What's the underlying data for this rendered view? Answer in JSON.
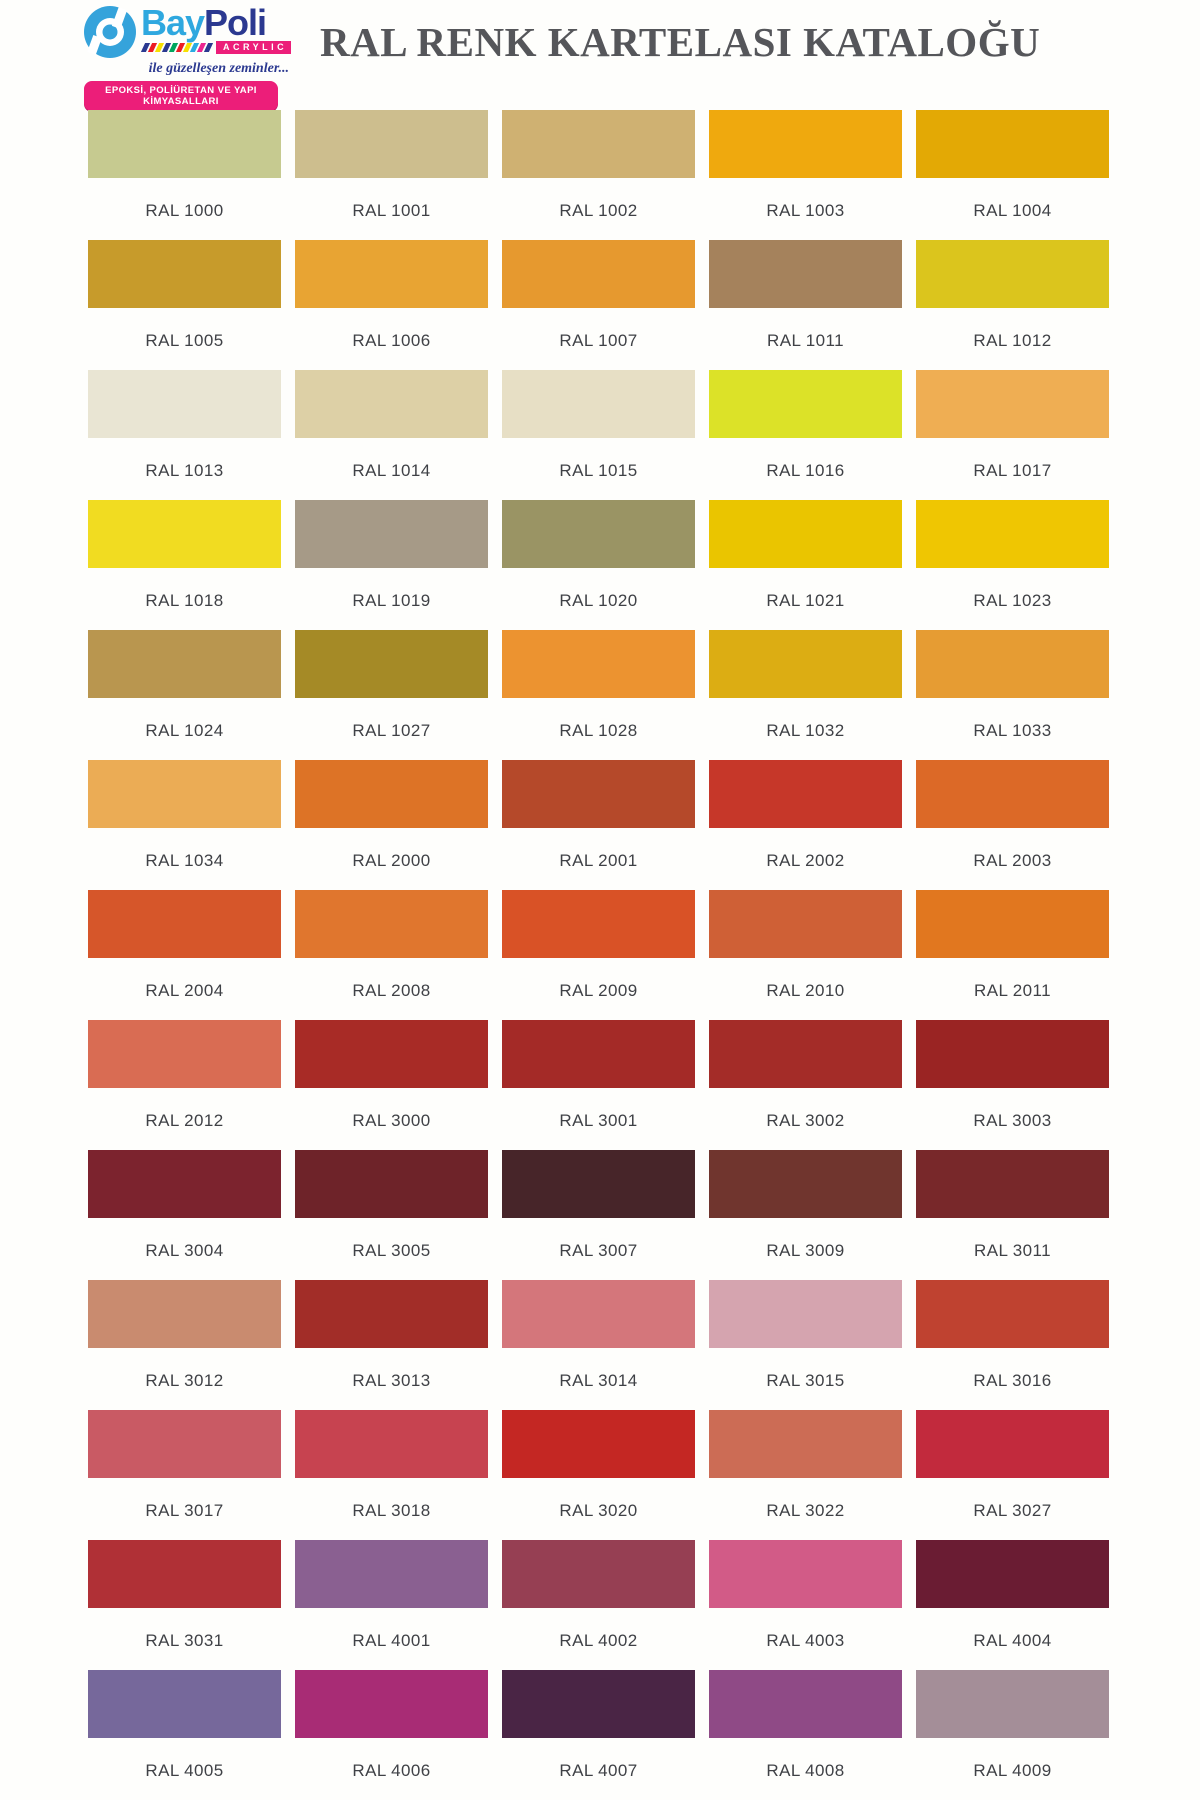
{
  "header": {
    "logo": {
      "brand_bay": "Bay",
      "brand_poli": "Poli",
      "acrylic": "ACRYLIC",
      "tagline_script": "ile güzelleşen zeminler...",
      "badge": "EPOKSİ, POLİÜRETAN VE YAPI KİMYASALLARI",
      "flag_colors": [
        "#2B3990",
        "#EC1C24",
        "#F7DF00",
        "#2B3990",
        "#00A65D",
        "#EC1C24",
        "#F7DF00",
        "#29ABE2",
        "#EC268F",
        "#2B3990"
      ],
      "mark_color": "#35A3DB",
      "accent_pink": "#EC1E79",
      "navy": "#2B3990",
      "light_blue": "#2FA8DF"
    },
    "title": "RAL RENK KARTELASI KATALOĞU",
    "title_color": "#55565A"
  },
  "palette": {
    "label_color": "#3F4146",
    "rows": [
      {
        "swatches": [
          {
            "code": "RAL 1000",
            "color": "#C6CA90"
          },
          {
            "code": "RAL 1001",
            "color": "#CDBE8E"
          },
          {
            "code": "RAL 1002",
            "color": "#CFB172"
          },
          {
            "code": "RAL 1003",
            "color": "#EFA90E"
          },
          {
            "code": "RAL 1004",
            "color": "#E3A905"
          }
        ]
      },
      {
        "swatches": [
          {
            "code": "RAL 1005",
            "color": "#C79B2B"
          },
          {
            "code": "RAL 1006",
            "color": "#E8A433"
          },
          {
            "code": "RAL 1007",
            "color": "#E6992F"
          },
          {
            "code": "RAL 1011",
            "color": "#A5825C"
          },
          {
            "code": "RAL 1012",
            "color": "#DBC51D"
          }
        ]
      },
      {
        "swatches": [
          {
            "code": "RAL 1013",
            "color": "#E9E5D3"
          },
          {
            "code": "RAL 1014",
            "color": "#DDD0A6"
          },
          {
            "code": "RAL 1015",
            "color": "#E7DFC5"
          },
          {
            "code": "RAL 1016",
            "color": "#DCE228"
          },
          {
            "code": "RAL 1017",
            "color": "#EFAE53"
          }
        ]
      },
      {
        "swatches": [
          {
            "code": "RAL 1018",
            "color": "#F1DC21"
          },
          {
            "code": "RAL 1019",
            "color": "#A69A87"
          },
          {
            "code": "RAL 1020",
            "color": "#9A9464"
          },
          {
            "code": "RAL 1021",
            "color": "#EAC500"
          },
          {
            "code": "RAL 1023",
            "color": "#EFC602"
          }
        ]
      },
      {
        "swatches": [
          {
            "code": "RAL 1024",
            "color": "#B9964F"
          },
          {
            "code": "RAL 1027",
            "color": "#A58A26"
          },
          {
            "code": "RAL 1028",
            "color": "#EC9330"
          },
          {
            "code": "RAL 1032",
            "color": "#DCAD13"
          },
          {
            "code": "RAL 1033",
            "color": "#E69C33"
          }
        ]
      },
      {
        "swatches": [
          {
            "code": "RAL 1034",
            "color": "#EBAC55"
          },
          {
            "code": "RAL 2000",
            "color": "#DD7326"
          },
          {
            "code": "RAL 2001",
            "color": "#B5492A"
          },
          {
            "code": "RAL 2002",
            "color": "#C63729"
          },
          {
            "code": "RAL 2003",
            "color": "#DC6927"
          }
        ]
      },
      {
        "swatches": [
          {
            "code": "RAL 2004",
            "color": "#D6562A"
          },
          {
            "code": "RAL 2008",
            "color": "#E0762E"
          },
          {
            "code": "RAL 2009",
            "color": "#D95226"
          },
          {
            "code": "RAL 2010",
            "color": "#CF6036"
          },
          {
            "code": "RAL 2011",
            "color": "#E1771F"
          }
        ]
      },
      {
        "swatches": [
          {
            "code": "RAL 2012",
            "color": "#D96C53"
          },
          {
            "code": "RAL 3000",
            "color": "#A82B26"
          },
          {
            "code": "RAL 3001",
            "color": "#A42A27"
          },
          {
            "code": "RAL 3002",
            "color": "#A42C28"
          },
          {
            "code": "RAL 3003",
            "color": "#9A2423"
          }
        ]
      },
      {
        "swatches": [
          {
            "code": "RAL 3004",
            "color": "#7C232E"
          },
          {
            "code": "RAL 3005",
            "color": "#6E2329"
          },
          {
            "code": "RAL 3007",
            "color": "#472529"
          },
          {
            "code": "RAL 3009",
            "color": "#70352E"
          },
          {
            "code": "RAL 3011",
            "color": "#78282A"
          }
        ]
      },
      {
        "swatches": [
          {
            "code": "RAL 3012",
            "color": "#C98B6F"
          },
          {
            "code": "RAL 3013",
            "color": "#A22D28"
          },
          {
            "code": "RAL 3014",
            "color": "#D4767B"
          },
          {
            "code": "RAL 3015",
            "color": "#D5A4AF"
          },
          {
            "code": "RAL 3016",
            "color": "#BF4230"
          }
        ]
      },
      {
        "swatches": [
          {
            "code": "RAL 3017",
            "color": "#C95A64"
          },
          {
            "code": "RAL 3018",
            "color": "#C74350"
          },
          {
            "code": "RAL 3020",
            "color": "#C42723"
          },
          {
            "code": "RAL 3022",
            "color": "#CC6C55"
          },
          {
            "code": "RAL 3027",
            "color": "#C22A3D"
          }
        ]
      },
      {
        "swatches": [
          {
            "code": "RAL 3031",
            "color": "#B03036"
          },
          {
            "code": "RAL 4001",
            "color": "#8A6091"
          },
          {
            "code": "RAL 4002",
            "color": "#963F53"
          },
          {
            "code": "RAL 4003",
            "color": "#D25B87"
          },
          {
            "code": "RAL 4004",
            "color": "#6A1C33"
          }
        ]
      },
      {
        "swatches": [
          {
            "code": "RAL 4005",
            "color": "#76689B"
          },
          {
            "code": "RAL 4006",
            "color": "#A82C75"
          },
          {
            "code": "RAL 4007",
            "color": "#4A2545"
          },
          {
            "code": "RAL 4008",
            "color": "#8F4A86"
          },
          {
            "code": "RAL 4009",
            "color": "#A48E98"
          }
        ]
      }
    ]
  }
}
